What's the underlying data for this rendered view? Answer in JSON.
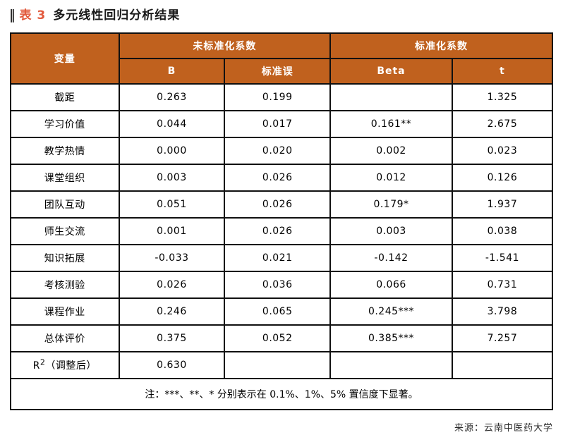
{
  "title": {
    "marker": "‖",
    "table_label": "表 3",
    "text": "多元线性回归分析结果"
  },
  "colors": {
    "header_bg": "#c0611e",
    "header_text": "#ffffff",
    "title_accent": "#e2593c",
    "border": "#101010"
  },
  "table": {
    "header": {
      "variable": "变量",
      "unstandardized_group": "未标准化系数",
      "standardized_group": "标准化系数",
      "b": "B",
      "std_error": "标准误",
      "beta": "Beta",
      "t": "t"
    },
    "column_widths_percent": [
      20,
      19.5,
      19.5,
      22.5,
      18.5
    ],
    "rows": [
      {
        "variable": "截距",
        "b": "0.263",
        "se": "0.199",
        "beta": "",
        "t": "1.325"
      },
      {
        "variable": "学习价值",
        "b": "0.044",
        "se": "0.017",
        "beta": "0.161**",
        "t": "2.675"
      },
      {
        "variable": "教学热情",
        "b": "0.000",
        "se": "0.020",
        "beta": "0.002",
        "t": "0.023"
      },
      {
        "variable": "课堂组织",
        "b": "0.003",
        "se": "0.026",
        "beta": "0.012",
        "t": "0.126"
      },
      {
        "variable": "团队互动",
        "b": "0.051",
        "se": "0.026",
        "beta": "0.179*",
        "t": "1.937"
      },
      {
        "variable": "师生交流",
        "b": "0.001",
        "se": "0.026",
        "beta": "0.003",
        "t": "0.038"
      },
      {
        "variable": "知识拓展",
        "b": "-0.033",
        "se": "0.021",
        "beta": "-0.142",
        "t": "-1.541"
      },
      {
        "variable": "考核测验",
        "b": "0.026",
        "se": "0.036",
        "beta": "0.066",
        "t": "0.731"
      },
      {
        "variable": "课程作业",
        "b": "0.246",
        "se": "0.065",
        "beta": "0.245***",
        "t": "3.798"
      },
      {
        "variable": "总体评价",
        "b": "0.375",
        "se": "0.052",
        "beta": "0.385***",
        "t": "7.257"
      },
      {
        "variable": "R",
        "variable_sup": "2",
        "variable_suffix": "（调整后）",
        "b": "0.630",
        "se": "",
        "beta": "",
        "t": ""
      }
    ],
    "note": "注：***、**、* 分别表示在 0.1%、1%、5% 置信度下显著。"
  },
  "source": "来源：云南中医药大学"
}
